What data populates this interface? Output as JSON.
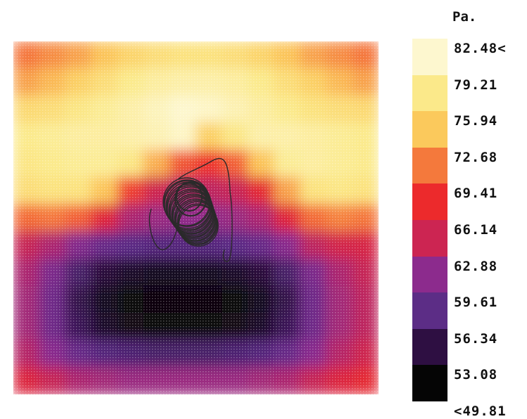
{
  "chart_data": {
    "type": "heatmap",
    "unit": "Pa.",
    "legend": {
      "labels": [
        "82.48<",
        "79.21",
        "75.94",
        "72.68",
        "69.41",
        "66.14",
        "62.88",
        "59.61",
        "56.34",
        "53.08",
        "<49.81"
      ],
      "colors": [
        "#fdf7cf",
        "#fbe98a",
        "#fbc95c",
        "#f4793c",
        "#ec2a2c",
        "#cc2552",
        "#8c2b8d",
        "#5c2d86",
        "#2e0f42",
        "#050505"
      ]
    },
    "range": [
      49.81,
      82.48
    ],
    "grid": {
      "rows": 13,
      "cols": 14
    },
    "values": [
      [
        71.5,
        72.5,
        73.5,
        75.0,
        76.5,
        77.5,
        78.0,
        78.0,
        77.5,
        76.5,
        75.0,
        73.5,
        72.5,
        71.5
      ],
      [
        73.5,
        74.5,
        76.0,
        77.5,
        79.0,
        80.0,
        80.5,
        80.5,
        80.0,
        79.0,
        77.5,
        76.0,
        74.5,
        73.5
      ],
      [
        77.0,
        77.5,
        78.5,
        79.5,
        80.5,
        81.5,
        83.0,
        82.0,
        81.0,
        80.0,
        79.0,
        78.0,
        77.5,
        77.0
      ],
      [
        79.0,
        79.5,
        80.0,
        80.0,
        80.5,
        81.0,
        82.0,
        76.0,
        78.5,
        80.5,
        80.5,
        80.0,
        79.5,
        79.0
      ],
      [
        78.5,
        79.0,
        79.5,
        79.5,
        78.5,
        74.0,
        70.0,
        68.5,
        70.5,
        75.0,
        79.5,
        80.0,
        79.5,
        79.0
      ],
      [
        77.5,
        78.0,
        78.0,
        75.0,
        69.0,
        64.5,
        63.0,
        63.5,
        64.0,
        67.0,
        73.5,
        78.0,
        78.5,
        78.0
      ],
      [
        71.0,
        71.5,
        70.5,
        66.5,
        62.5,
        61.5,
        61.0,
        61.0,
        61.5,
        62.5,
        66.5,
        71.0,
        72.0,
        71.5
      ],
      [
        64.0,
        62.5,
        60.0,
        58.0,
        57.0,
        56.5,
        56.5,
        56.5,
        57.0,
        58.0,
        60.5,
        63.5,
        65.0,
        65.5
      ],
      [
        62.5,
        59.5,
        55.5,
        53.0,
        52.0,
        51.5,
        51.5,
        51.5,
        52.0,
        53.0,
        55.5,
        59.5,
        62.5,
        64.0
      ],
      [
        62.0,
        58.5,
        54.0,
        51.5,
        50.5,
        50.0,
        50.0,
        50.0,
        50.5,
        51.5,
        54.0,
        58.5,
        62.0,
        63.5
      ],
      [
        62.0,
        58.5,
        54.5,
        52.0,
        51.0,
        50.5,
        50.5,
        50.5,
        51.0,
        52.0,
        54.5,
        58.5,
        62.0,
        63.5
      ],
      [
        63.0,
        60.5,
        58.0,
        56.5,
        56.0,
        55.5,
        55.5,
        55.5,
        56.0,
        56.5,
        58.0,
        60.5,
        63.0,
        64.5
      ],
      [
        66.0,
        64.0,
        62.5,
        62.0,
        61.5,
        61.5,
        61.5,
        61.5,
        61.5,
        62.0,
        62.5,
        64.0,
        66.0,
        67.0
      ]
    ]
  }
}
